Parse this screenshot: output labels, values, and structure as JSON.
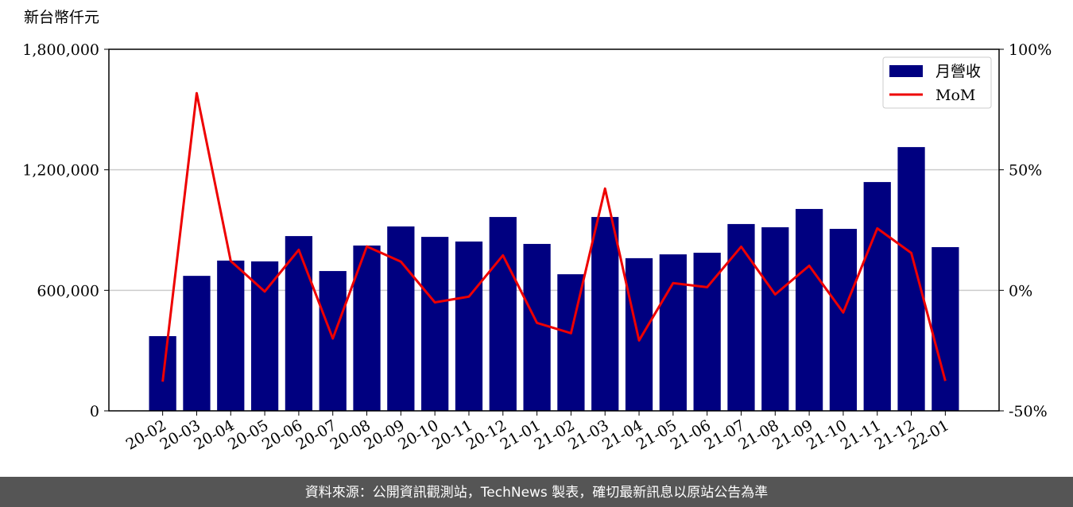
{
  "chart_data": {
    "type": "bar_line",
    "y_label": "新台幣仟元",
    "footer": "資料來源：公開資訊觀測站，TechNews 製表，確切最新訊息以原站公告為準",
    "categories": [
      "20-02",
      "20-03",
      "20-04",
      "20-05",
      "20-06",
      "20-07",
      "20-08",
      "20-09",
      "20-10",
      "20-11",
      "20-12",
      "21-01",
      "21-02",
      "21-03",
      "21-04",
      "21-05",
      "21-06",
      "21-07",
      "21-08",
      "21-09",
      "21-10",
      "21-11",
      "21-12",
      "22-01"
    ],
    "series": [
      {
        "name": "月營收",
        "color": "#000080",
        "type": "bar",
        "values": [
          372000,
          672000,
          748000,
          744000,
          870000,
          696000,
          823000,
          918000,
          866000,
          843000,
          965000,
          831000,
          680000,
          965000,
          760000,
          779000,
          787000,
          930000,
          914000,
          1005000,
          906000,
          1139000,
          1313000,
          815000
        ]
      },
      {
        "name": "MoM",
        "color": "#ee0000",
        "type": "line",
        "axis": "y2",
        "values": [
          -37.9,
          81.8,
          12.2,
          -0.5,
          16.8,
          -20.0,
          18.2,
          11.9,
          -5.0,
          -2.6,
          14.5,
          -13.5,
          -17.8,
          42.2,
          -20.8,
          3.0,
          1.3,
          18.1,
          -1.7,
          10.2,
          -9.2,
          25.7,
          15.5,
          -37.6
        ]
      }
    ],
    "ylim": [
      0,
      1800000
    ],
    "yticks": [
      {
        "value": 0,
        "label": "0"
      },
      {
        "value": 600000,
        "label": "600,000"
      },
      {
        "value": 1200000,
        "label": "1,200,000"
      },
      {
        "value": 1800000,
        "label": "1,800,000"
      }
    ],
    "y2lim": [
      -50,
      100
    ],
    "y2ticks": [
      {
        "value": -50,
        "label": "-50%"
      },
      {
        "value": 0,
        "label": "0%"
      },
      {
        "value": 50,
        "label": "50%"
      },
      {
        "value": 100,
        "label": "100%"
      }
    ],
    "grid": true,
    "legend": "upper right"
  }
}
